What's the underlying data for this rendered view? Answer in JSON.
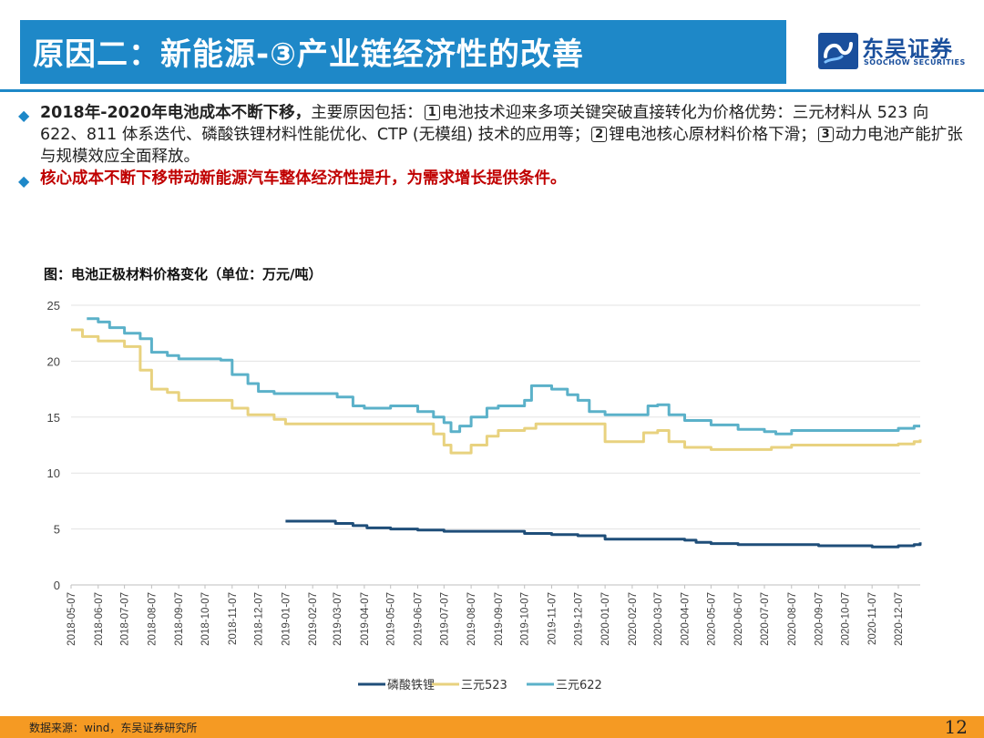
{
  "header": {
    "title": "原因二：新能源-③产业链经济性的改善",
    "logo_cn": "东吴证券",
    "logo_en": "SOOCHOW SECURITIES"
  },
  "bullets": {
    "b1_strong": "2018年-2020年电池成本不断下移，",
    "b1_text_a": "主要原因包括：",
    "num1": "1",
    "b1_text_b": "电池技术迎来多项关键突破直接转化为价格优势：三元材料从 523 向 622、811 体系迭代、磷酸铁锂材料性能优化、CTP (无模组) 技术的应用等；",
    "num2": "2",
    "b1_text_c": "锂电池核心原材料价格下滑；",
    "num3": "3",
    "b1_text_d": "动力电池产能扩张与规模效应全面释放。",
    "b2_text": "核心成本不断下移带动新能源汽车整体经济性提升，为需求增长提供条件。"
  },
  "chart_title": "图：电池正极材料价格变化（单位：万元/吨）",
  "footer": {
    "source": "数据来源：wind，东吴证券研究所",
    "page": "12"
  },
  "chart_data": {
    "type": "line",
    "ylim": [
      0,
      25
    ],
    "yticks": [
      "0",
      "5",
      "10",
      "15",
      "20",
      "25"
    ],
    "x_tick_labels": [
      "2018-05-07",
      "2018-06-07",
      "2018-07-07",
      "2018-08-07",
      "2018-09-07",
      "2018-10-07",
      "2018-11-07",
      "2018-12-07",
      "2019-01-07",
      "2019-02-07",
      "2019-03-07",
      "2019-04-07",
      "2019-05-07",
      "2019-06-07",
      "2019-07-07",
      "2019-08-07",
      "2019-09-07",
      "2019-10-07",
      "2019-11-07",
      "2019-12-07",
      "2020-01-07",
      "2020-02-07",
      "2020-03-07",
      "2020-04-07",
      "2020-05-07",
      "2020-06-07",
      "2020-07-07",
      "2020-08-07",
      "2020-09-07",
      "2020-10-07",
      "2020-11-07",
      "2020-12-07"
    ],
    "legend_position": "bottom",
    "colors": {
      "lfp": "#1F4E79",
      "ncm523": "#E8D27F",
      "ncm622": "#5BB1C9"
    },
    "series": [
      {
        "name": "磷酸铁锂",
        "key": "lfp",
        "points": [
          [
            "2019-01-07",
            5.7
          ],
          [
            "2019-02-20",
            5.7
          ],
          [
            "2019-03-05",
            5.5
          ],
          [
            "2019-03-25",
            5.3
          ],
          [
            "2019-04-10",
            5.1
          ],
          [
            "2019-05-07",
            5.0
          ],
          [
            "2019-06-07",
            4.9
          ],
          [
            "2019-07-07",
            4.8
          ],
          [
            "2019-08-07",
            4.8
          ],
          [
            "2019-09-07",
            4.8
          ],
          [
            "2019-10-07",
            4.6
          ],
          [
            "2019-11-07",
            4.5
          ],
          [
            "2019-12-07",
            4.4
          ],
          [
            "2020-01-07",
            4.1
          ],
          [
            "2020-02-07",
            4.1
          ],
          [
            "2020-03-07",
            4.1
          ],
          [
            "2020-04-07",
            4.0
          ],
          [
            "2020-04-20",
            3.8
          ],
          [
            "2020-05-07",
            3.7
          ],
          [
            "2020-06-07",
            3.6
          ],
          [
            "2020-07-07",
            3.6
          ],
          [
            "2020-08-07",
            3.6
          ],
          [
            "2020-09-07",
            3.5
          ],
          [
            "2020-10-07",
            3.5
          ],
          [
            "2020-11-07",
            3.4
          ],
          [
            "2020-12-07",
            3.5
          ],
          [
            "2020-12-25",
            3.6
          ],
          [
            "2021-01-01",
            3.8
          ]
        ]
      },
      {
        "name": "三元523",
        "key": "ncm523",
        "points": [
          [
            "2018-05-07",
            22.8
          ],
          [
            "2018-05-20",
            22.2
          ],
          [
            "2018-06-07",
            21.8
          ],
          [
            "2018-06-25",
            21.8
          ],
          [
            "2018-07-07",
            21.3
          ],
          [
            "2018-07-25",
            19.2
          ],
          [
            "2018-08-07",
            17.5
          ],
          [
            "2018-08-25",
            17.2
          ],
          [
            "2018-09-07",
            16.5
          ],
          [
            "2018-10-07",
            16.5
          ],
          [
            "2018-11-07",
            15.8
          ],
          [
            "2018-11-25",
            15.2
          ],
          [
            "2018-12-07",
            15.2
          ],
          [
            "2018-12-25",
            14.8
          ],
          [
            "2019-01-07",
            14.4
          ],
          [
            "2019-02-07",
            14.4
          ],
          [
            "2019-03-07",
            14.4
          ],
          [
            "2019-04-07",
            14.4
          ],
          [
            "2019-05-07",
            14.4
          ],
          [
            "2019-06-07",
            14.4
          ],
          [
            "2019-06-25",
            13.5
          ],
          [
            "2019-07-07",
            12.5
          ],
          [
            "2019-07-15",
            11.8
          ],
          [
            "2019-08-07",
            12.5
          ],
          [
            "2019-08-25",
            13.3
          ],
          [
            "2019-09-07",
            13.8
          ],
          [
            "2019-10-07",
            14.0
          ],
          [
            "2019-10-20",
            14.4
          ],
          [
            "2019-11-07",
            14.4
          ],
          [
            "2019-12-07",
            14.4
          ],
          [
            "2020-01-07",
            12.8
          ],
          [
            "2020-02-07",
            12.8
          ],
          [
            "2020-02-20",
            13.6
          ],
          [
            "2020-03-07",
            13.8
          ],
          [
            "2020-03-20",
            12.8
          ],
          [
            "2020-04-07",
            12.3
          ],
          [
            "2020-05-07",
            12.1
          ],
          [
            "2020-06-07",
            12.1
          ],
          [
            "2020-07-07",
            12.1
          ],
          [
            "2020-07-15",
            12.3
          ],
          [
            "2020-08-07",
            12.5
          ],
          [
            "2020-09-07",
            12.5
          ],
          [
            "2020-10-07",
            12.5
          ],
          [
            "2020-11-07",
            12.5
          ],
          [
            "2020-12-07",
            12.6
          ],
          [
            "2020-12-25",
            12.8
          ],
          [
            "2021-01-01",
            13.0
          ]
        ]
      },
      {
        "name": "三元622",
        "key": "ncm622",
        "points": [
          [
            "2018-05-25",
            23.8
          ],
          [
            "2018-06-07",
            23.5
          ],
          [
            "2018-06-20",
            23.0
          ],
          [
            "2018-07-07",
            22.5
          ],
          [
            "2018-07-25",
            22.0
          ],
          [
            "2018-08-07",
            20.8
          ],
          [
            "2018-08-25",
            20.5
          ],
          [
            "2018-09-07",
            20.2
          ],
          [
            "2018-10-07",
            20.2
          ],
          [
            "2018-10-25",
            20.1
          ],
          [
            "2018-11-07",
            18.8
          ],
          [
            "2018-11-25",
            18.0
          ],
          [
            "2018-12-07",
            17.3
          ],
          [
            "2018-12-25",
            17.1
          ],
          [
            "2019-01-07",
            17.1
          ],
          [
            "2019-02-07",
            17.1
          ],
          [
            "2019-03-07",
            16.8
          ],
          [
            "2019-03-25",
            16.0
          ],
          [
            "2019-04-07",
            15.8
          ],
          [
            "2019-05-07",
            16.0
          ],
          [
            "2019-06-07",
            15.5
          ],
          [
            "2019-06-25",
            15.0
          ],
          [
            "2019-07-07",
            14.5
          ],
          [
            "2019-07-15",
            13.7
          ],
          [
            "2019-07-25",
            14.2
          ],
          [
            "2019-08-07",
            15.0
          ],
          [
            "2019-08-25",
            15.8
          ],
          [
            "2019-09-07",
            16.0
          ],
          [
            "2019-10-07",
            16.5
          ],
          [
            "2019-10-15",
            17.8
          ],
          [
            "2019-11-07",
            17.5
          ],
          [
            "2019-11-25",
            17.0
          ],
          [
            "2019-12-07",
            16.5
          ],
          [
            "2019-12-20",
            15.5
          ],
          [
            "2020-01-07",
            15.2
          ],
          [
            "2020-02-07",
            15.2
          ],
          [
            "2020-02-25",
            16.0
          ],
          [
            "2020-03-07",
            16.1
          ],
          [
            "2020-03-20",
            15.2
          ],
          [
            "2020-04-07",
            14.7
          ],
          [
            "2020-05-07",
            14.3
          ],
          [
            "2020-06-07",
            13.9
          ],
          [
            "2020-07-07",
            13.7
          ],
          [
            "2020-07-20",
            13.5
          ],
          [
            "2020-08-07",
            13.8
          ],
          [
            "2020-09-07",
            13.8
          ],
          [
            "2020-10-07",
            13.8
          ],
          [
            "2020-11-07",
            13.8
          ],
          [
            "2020-12-07",
            14.0
          ],
          [
            "2020-12-25",
            14.2
          ],
          [
            "2021-01-01",
            14.2
          ]
        ]
      }
    ]
  }
}
